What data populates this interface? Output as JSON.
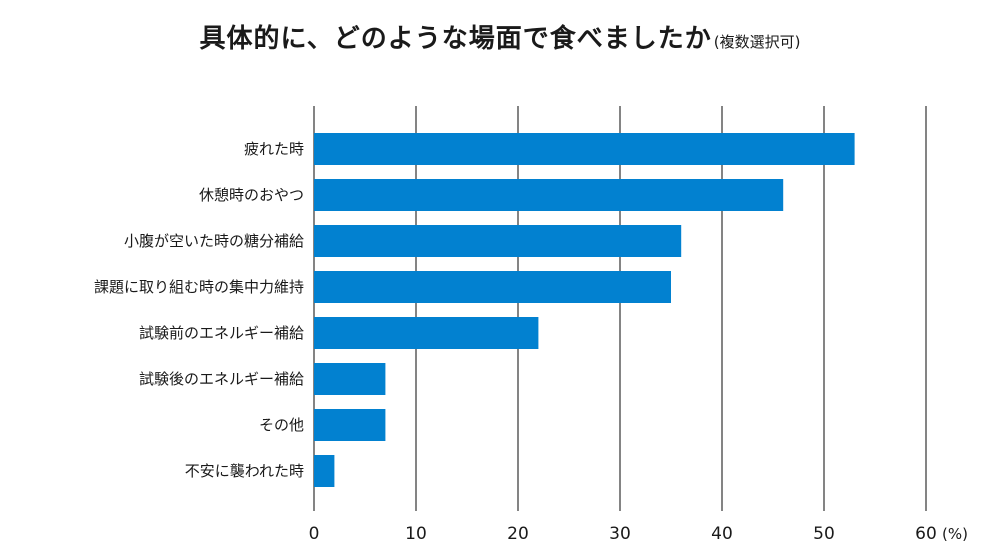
{
  "chart_data": {
    "type": "bar",
    "orientation": "horizontal",
    "title": "具体的に、どのような場面で食べましたか",
    "subtitle": "(複数選択可)",
    "unit": "(%)",
    "categories": [
      "疲れた時",
      "休憩時のおやつ",
      "小腹が空いた時の糖分補給",
      "課題に取り組む時の集中力維持",
      "試験前のエネルギー補給",
      "試験後のエネルギー補給",
      "その他",
      "不安に襲われた時"
    ],
    "values": [
      53,
      46,
      36,
      35,
      22,
      7,
      7,
      2
    ],
    "xlim": [
      0,
      60
    ],
    "xticks": [
      0,
      10,
      20,
      30,
      40,
      50,
      60
    ],
    "grid": true,
    "bar_color": "#0281d0"
  }
}
